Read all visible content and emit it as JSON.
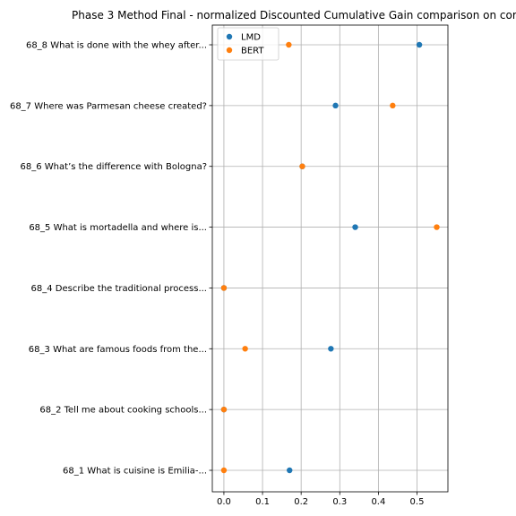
{
  "chart_data": {
    "type": "scatter",
    "title": "Phase 3 Method Final - normalized Discounted Cumulative Gain comparison on cor",
    "xlabel": "",
    "ylabel": "",
    "xlim": [
      -0.03,
      0.58
    ],
    "xticks": [
      0.0,
      0.1,
      0.2,
      0.3,
      0.4,
      0.5
    ],
    "xtick_labels": [
      "0.0",
      "0.1",
      "0.2",
      "0.3",
      "0.4",
      "0.5"
    ],
    "categories": [
      "68_1 What is cuisine is Emilia-...",
      "68_2 Tell me about cooking schools...",
      "68_3 What are famous foods from the...",
      "68_4 Describe the traditional process...",
      "68_5 What is mortadella and where is...",
      "68_6 What’s the difference with Bologna?",
      "68_7 Where was Parmesan cheese created?",
      "68_8 What is done with the whey after..."
    ],
    "grid": true,
    "legend_position": "upper-left",
    "series": [
      {
        "name": "LMD",
        "color": "#1f77b4",
        "values": [
          0.17,
          0.0,
          0.277,
          0.0,
          0.34,
          0.203,
          0.289,
          0.506
        ]
      },
      {
        "name": "BERT",
        "color": "#ff7f0e",
        "values": [
          0.0,
          0.0,
          0.055,
          0.0,
          0.551,
          0.203,
          0.437,
          0.168
        ]
      }
    ]
  }
}
